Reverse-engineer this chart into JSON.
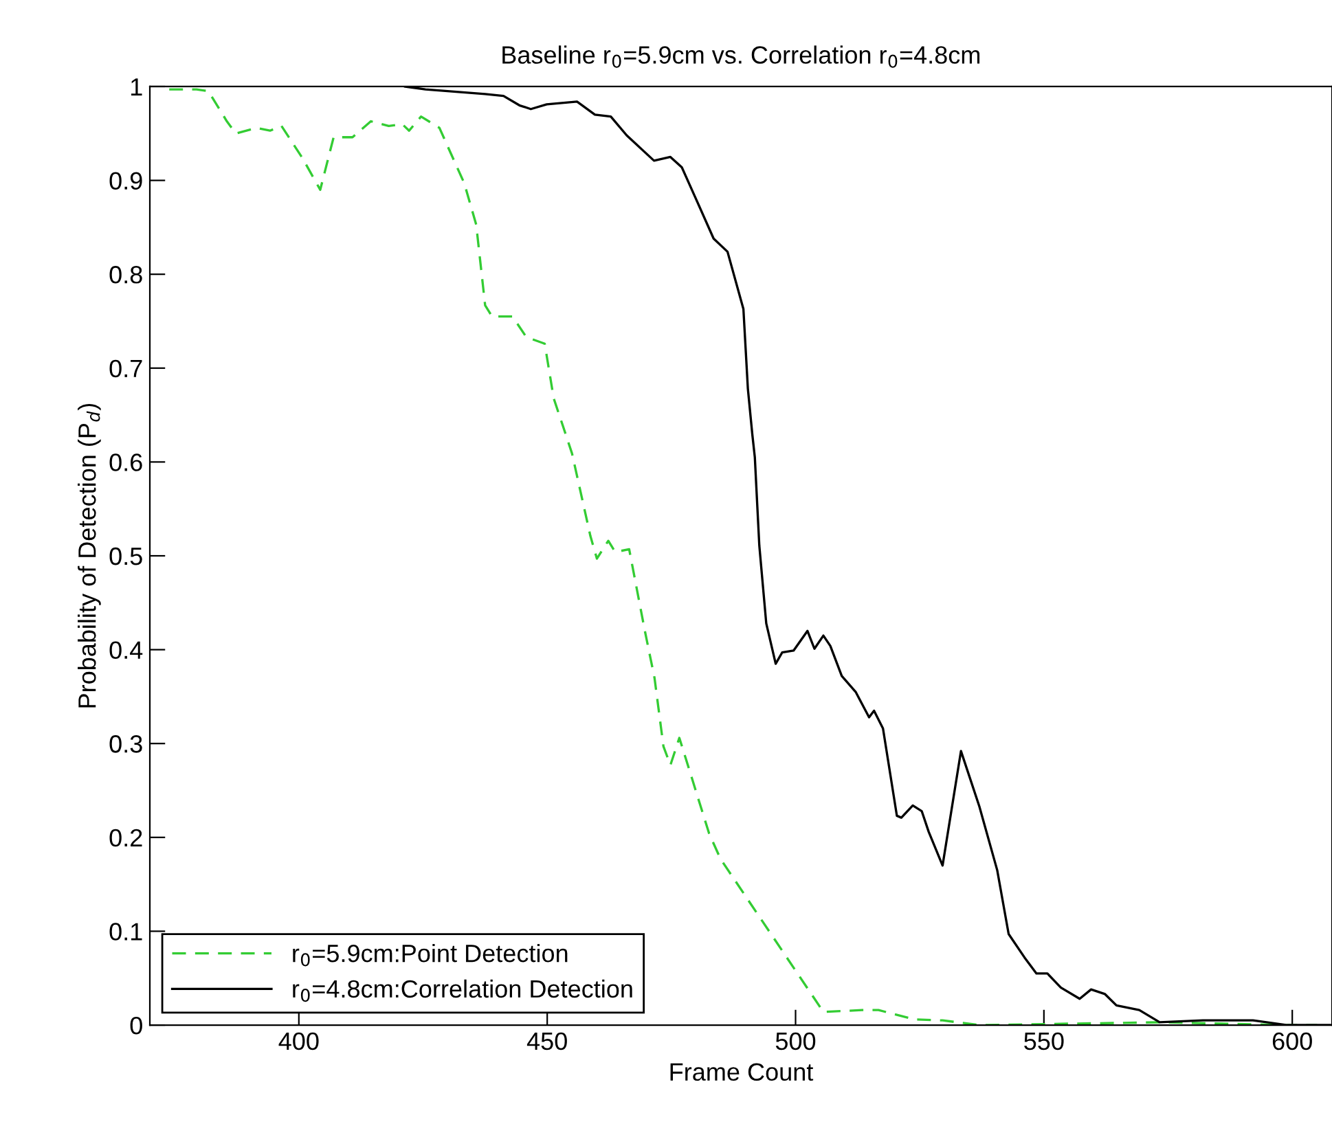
{
  "chart_data": {
    "type": "line",
    "title": "Baseline r$_{0}$=5.9cm vs. Correlation r$_{0}$=4.8cm",
    "xlabel": "Frame Count",
    "ylabel": "Probability of Detection (P$_{d}$)",
    "xlim": [
      370,
      608
    ],
    "xticks": [
      400,
      450,
      500,
      550,
      600
    ],
    "ylim": [
      0,
      1
    ],
    "yticks": [
      0,
      0.1,
      0.2,
      0.3,
      0.4,
      0.5,
      0.6,
      0.7,
      0.8,
      0.9,
      1
    ],
    "grid": false,
    "legend": "bottom left",
    "series": [
      {
        "name": "r$_{0}$=5.9cm:Point Detection",
        "color": "#33cc33",
        "line_style": "dashed",
        "x": [
          373.9,
          379.4,
          381.8,
          385.5,
          387.3,
          391.5,
          394.2,
          396.5,
          400.7,
          404.3,
          407,
          410.8,
          414.5,
          418.1,
          420.8,
          422.2,
          424.6,
          428.3,
          431,
          433.3,
          435.7,
          437.5,
          438.9,
          443,
          445.8,
          449.5,
          451.3,
          455,
          458.7,
          460,
          462.3,
          463.7,
          466.5,
          469.7,
          471.6,
          473.4,
          474.8,
          476.6,
          478.9,
          482.6,
          484.9,
          505.6,
          513.4,
          516.7,
          524,
          529.6,
          537,
          573.7,
          598.6,
          605
        ],
        "values": [
          0.997,
          0.997,
          0.995,
          0.963,
          0.95,
          0.956,
          0.953,
          0.958,
          0.924,
          0.89,
          0.946,
          0.946,
          0.963,
          0.958,
          0.96,
          0.953,
          0.968,
          0.956,
          0.924,
          0.897,
          0.853,
          0.767,
          0.755,
          0.755,
          0.733,
          0.726,
          0.668,
          0.609,
          0.521,
          0.497,
          0.516,
          0.504,
          0.507,
          0.419,
          0.37,
          0.297,
          0.277,
          0.306,
          0.267,
          0.204,
          0.177,
          0.014,
          0.016,
          0.016,
          0.006,
          0.005,
          0.0,
          0.003,
          0.0,
          0.0
        ]
      },
      {
        "name": "r$_{0}$=4.8cm:Correlation Detection",
        "color": "#000000",
        "line_style": "solid",
        "x": [
          421.4,
          425.5,
          437.5,
          441.2,
          444.4,
          446.7,
          449.9,
          456,
          459.6,
          462.8,
          466,
          471.5,
          474.8,
          477.1,
          479.8,
          483.5,
          486.3,
          489.5,
          490.4,
          491.3,
          491.8,
          492.7,
          494.1,
          496,
          497.3,
          499.6,
          502.4,
          503.8,
          505.6,
          507,
          509.3,
          512.1,
          514.8,
          515.8,
          517.6,
          520.4,
          521.3,
          523.6,
          525.4,
          526.8,
          529.6,
          533.3,
          537,
          540.6,
          542.9,
          546.1,
          548.5,
          550.7,
          553.4,
          557.2,
          559.5,
          562.3,
          564.6,
          569.2,
          573.3,
          582,
          592.1,
          599,
          607.6
        ],
        "values": [
          1.0,
          0.997,
          0.992,
          0.99,
          0.98,
          0.976,
          0.981,
          0.984,
          0.97,
          0.968,
          0.948,
          0.921,
          0.925,
          0.914,
          0.882,
          0.838,
          0.824,
          0.763,
          0.678,
          0.629,
          0.605,
          0.511,
          0.428,
          0.385,
          0.397,
          0.399,
          0.42,
          0.401,
          0.415,
          0.404,
          0.372,
          0.355,
          0.328,
          0.335,
          0.316,
          0.223,
          0.221,
          0.234,
          0.228,
          0.206,
          0.17,
          0.292,
          0.233,
          0.165,
          0.097,
          0.072,
          0.055,
          0.055,
          0.04,
          0.028,
          0.038,
          0.033,
          0.021,
          0.016,
          0.003,
          0.005,
          0.005,
          0.0,
          0.0
        ]
      }
    ]
  }
}
